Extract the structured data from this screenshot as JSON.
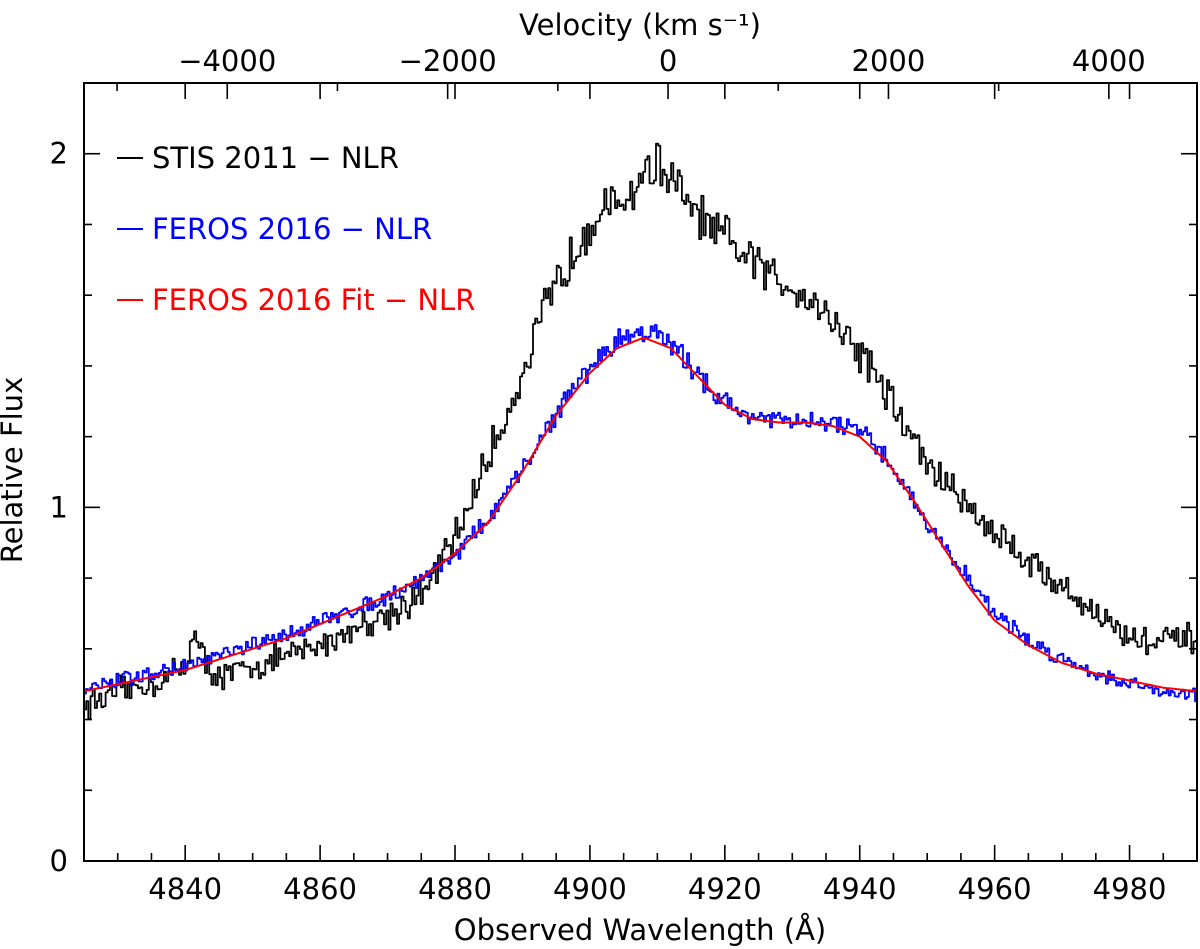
{
  "chart_data": {
    "type": "line",
    "title": "",
    "xlabel": "Observed Wavelength (Å)",
    "ylabel": "Relative Flux",
    "top_xlabel": "Velocity (km s⁻¹)",
    "xlim": [
      4825,
      4990
    ],
    "ylim": [
      0,
      2.2
    ],
    "top_xlim": [
      -5300,
      4800
    ],
    "x_ticks": [
      4840,
      4860,
      4880,
      4900,
      4920,
      4940,
      4960,
      4980
    ],
    "x_tick_labels": [
      "4840",
      "4860",
      "4880",
      "4900",
      "4920",
      "4940",
      "4960",
      "4980"
    ],
    "y_ticks": [
      0,
      1,
      2
    ],
    "y_tick_labels": [
      "0",
      "1",
      "2"
    ],
    "y_minor_ticks": [
      0.2,
      0.4,
      0.6,
      0.8,
      1.2,
      1.4,
      1.6,
      1.8
    ],
    "top_ticks": [
      -4000,
      -2000,
      0,
      2000,
      4000
    ],
    "top_tick_labels": [
      "−4000",
      "−2000",
      "0",
      "2000",
      "4000"
    ],
    "legend_location": "top-left",
    "series": [
      {
        "name": "STIS 2011 − NLR",
        "color": "#000000",
        "style": "step-noisy",
        "x": [
          4825,
          4830,
          4835,
          4840,
          4841,
          4843,
          4845,
          4850,
          4855,
          4860,
          4865,
          4870,
          4875,
          4880,
          4885,
          4890,
          4893,
          4896,
          4900,
          4903,
          4906,
          4908,
          4910,
          4912,
          4915,
          4918,
          4921,
          4925,
          4928,
          4931,
          4935,
          4938,
          4941,
          4945,
          4950,
          4955,
          4960,
          4965,
          4970,
          4975,
          4980,
          4985,
          4990
        ],
        "values": [
          0.44,
          0.48,
          0.5,
          0.55,
          0.66,
          0.55,
          0.52,
          0.55,
          0.58,
          0.61,
          0.66,
          0.7,
          0.75,
          0.92,
          1.15,
          1.38,
          1.55,
          1.67,
          1.82,
          1.84,
          1.89,
          1.95,
          1.97,
          1.92,
          1.84,
          1.78,
          1.74,
          1.68,
          1.64,
          1.62,
          1.55,
          1.48,
          1.42,
          1.28,
          1.12,
          1.02,
          0.93,
          0.85,
          0.77,
          0.7,
          0.63,
          0.62,
          0.63
        ]
      },
      {
        "name": "FEROS 2016 − NLR",
        "color": "#0000ff",
        "style": "step-noisy",
        "x": [
          4825,
          4830,
          4835,
          4840,
          4845,
          4850,
          4855,
          4860,
          4865,
          4870,
          4875,
          4880,
          4885,
          4890,
          4895,
          4900,
          4904,
          4907,
          4910,
          4914,
          4918,
          4922,
          4926,
          4930,
          4934,
          4938,
          4942,
          4946,
          4950,
          4955,
          4960,
          4965,
          4970,
          4975,
          4980,
          4985,
          4990
        ],
        "values": [
          0.48,
          0.51,
          0.53,
          0.55,
          0.58,
          0.61,
          0.64,
          0.68,
          0.71,
          0.75,
          0.8,
          0.87,
          0.97,
          1.11,
          1.27,
          1.4,
          1.47,
          1.5,
          1.49,
          1.42,
          1.33,
          1.27,
          1.25,
          1.24,
          1.24,
          1.23,
          1.18,
          1.08,
          0.95,
          0.82,
          0.7,
          0.62,
          0.57,
          0.53,
          0.5,
          0.48,
          0.47
        ]
      },
      {
        "name": "FEROS 2016 Fit − NLR",
        "color": "#ff0000",
        "style": "smooth",
        "x": [
          4825,
          4830,
          4835,
          4840,
          4845,
          4850,
          4855,
          4860,
          4865,
          4870,
          4875,
          4880,
          4885,
          4890,
          4895,
          4900,
          4904,
          4908,
          4912,
          4916,
          4920,
          4924,
          4928,
          4932,
          4936,
          4940,
          4944,
          4948,
          4952,
          4956,
          4960,
          4965,
          4970,
          4975,
          4980,
          4985,
          4990
        ],
        "values": [
          0.48,
          0.5,
          0.52,
          0.54,
          0.57,
          0.6,
          0.63,
          0.67,
          0.71,
          0.75,
          0.8,
          0.87,
          0.96,
          1.1,
          1.26,
          1.38,
          1.45,
          1.48,
          1.45,
          1.37,
          1.29,
          1.25,
          1.24,
          1.24,
          1.23,
          1.2,
          1.13,
          1.02,
          0.9,
          0.78,
          0.68,
          0.61,
          0.56,
          0.53,
          0.51,
          0.49,
          0.48
        ]
      }
    ]
  }
}
